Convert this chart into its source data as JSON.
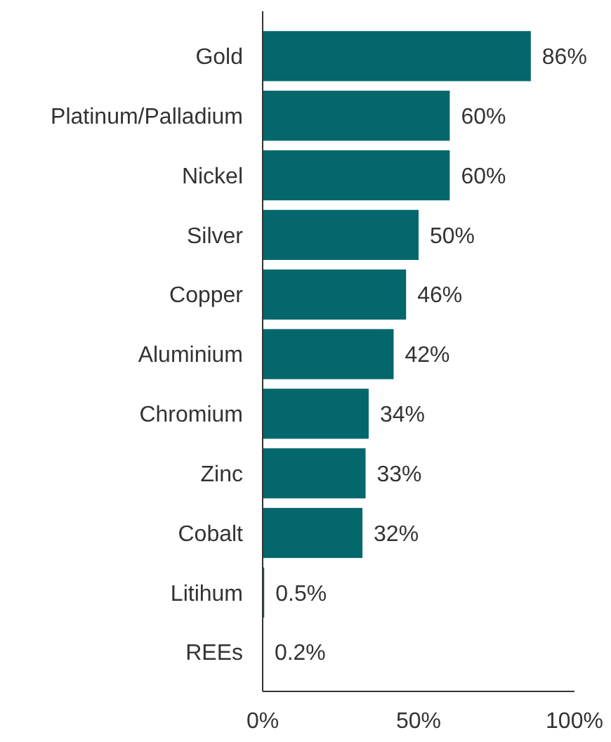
{
  "chart_data": {
    "type": "bar",
    "orientation": "horizontal",
    "categories": [
      "Gold",
      "Platinum/Palladium",
      "Nickel",
      "Silver",
      "Copper",
      "Aluminium",
      "Chromium",
      "Zinc",
      "Cobalt",
      "Litihum",
      "REEs"
    ],
    "values": [
      86,
      60,
      60,
      50,
      46,
      42,
      34,
      33,
      32,
      0.5,
      0.2
    ],
    "value_labels": [
      "86%",
      "60%",
      "60%",
      "50%",
      "46%",
      "42%",
      "34%",
      "33%",
      "32%",
      "0.5%",
      "0.2%"
    ],
    "color": "#03676b",
    "xlim": [
      0,
      100
    ],
    "xticks": [
      {
        "value": 0,
        "label": "0%"
      },
      {
        "value": 50,
        "label": "50%"
      },
      {
        "value": 100,
        "label": "100%"
      }
    ],
    "grid": false
  }
}
